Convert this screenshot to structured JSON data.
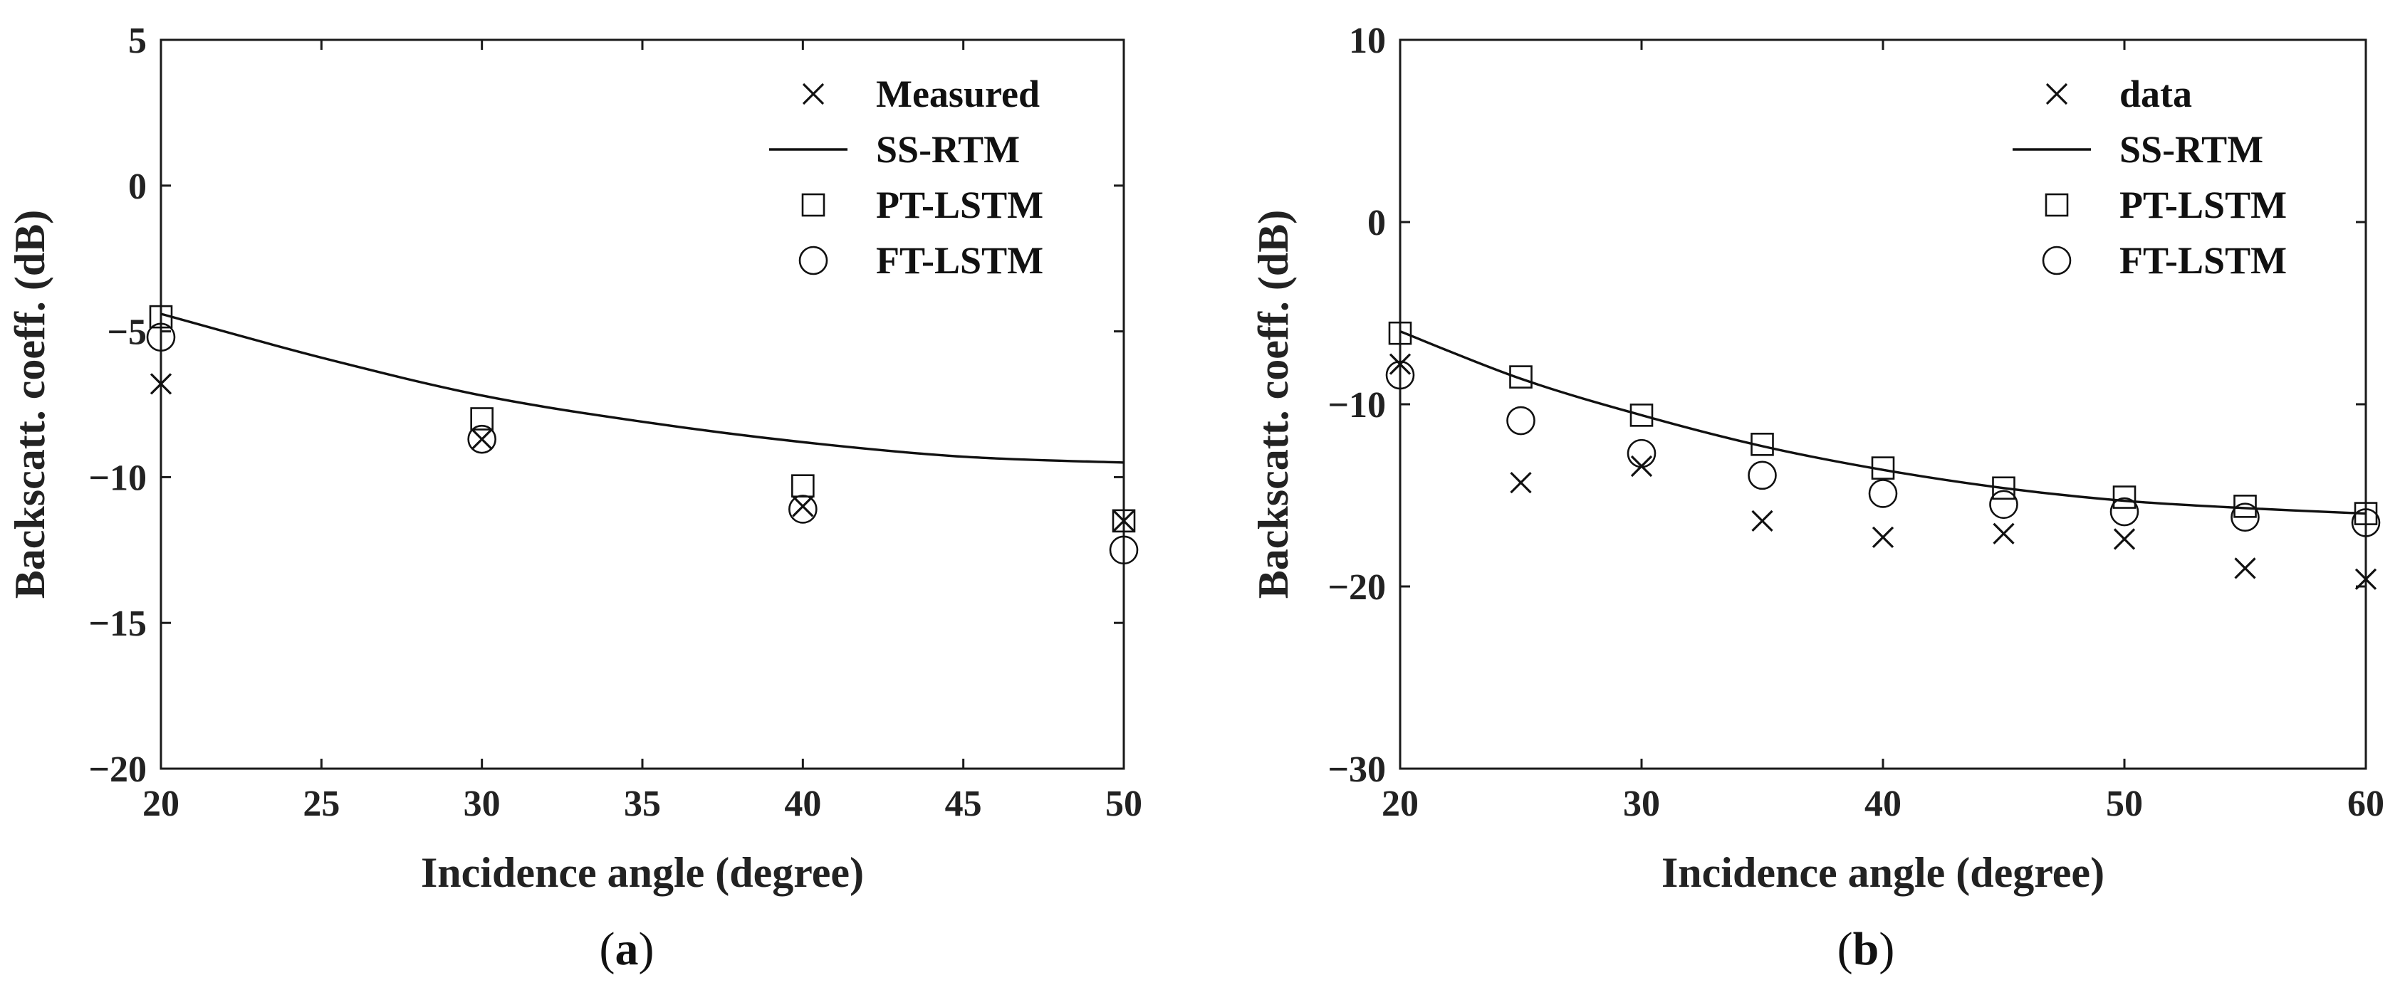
{
  "chart_data": [
    {
      "type": "line",
      "panel_label": "a",
      "xlabel": "Incidence angle (degree)",
      "ylabel": "Backscatt. coeff. (dB)",
      "xlim": [
        20,
        50
      ],
      "ylim": [
        -20,
        5
      ],
      "xticks": [
        20,
        25,
        30,
        35,
        40,
        45,
        50
      ],
      "yticks": [
        -20,
        -15,
        -10,
        -5,
        0,
        5
      ],
      "xtick_labels": [
        "20",
        "25",
        "30",
        "35",
        "40",
        "45",
        "50"
      ],
      "ytick_labels": [
        "−20",
        "−15",
        "−10",
        "−5",
        "0",
        "5"
      ],
      "legend_position": "top-right",
      "series": [
        {
          "name": "Measured",
          "marker": "x",
          "x": [
            20,
            30,
            40,
            50
          ],
          "y": [
            -6.8,
            -8.7,
            -11.0,
            -11.5
          ]
        },
        {
          "name": "SS-RTM",
          "marker": "line",
          "x": [
            20,
            25,
            30,
            35,
            40,
            45,
            50
          ],
          "y": [
            -4.4,
            -5.9,
            -7.2,
            -8.1,
            -8.8,
            -9.3,
            -9.5
          ]
        },
        {
          "name": "PT-LSTM",
          "marker": "square",
          "x": [
            20,
            30,
            40,
            50
          ],
          "y": [
            -4.5,
            -8.0,
            -10.3,
            -11.5
          ]
        },
        {
          "name": "FT-LSTM",
          "marker": "circle",
          "x": [
            20,
            30,
            40,
            50
          ],
          "y": [
            -5.2,
            -8.7,
            -11.1,
            -12.5
          ]
        }
      ]
    },
    {
      "type": "line",
      "panel_label": "b",
      "xlabel": "Incidence angle (degree)",
      "ylabel": "Backscatt. coeff. (dB)",
      "xlim": [
        20,
        60
      ],
      "ylim": [
        -30,
        10
      ],
      "xticks": [
        20,
        30,
        40,
        50,
        60
      ],
      "yticks": [
        -30,
        -20,
        -10,
        0,
        10
      ],
      "xtick_labels": [
        "20",
        "30",
        "40",
        "50",
        "60"
      ],
      "ytick_labels": [
        "−30",
        "−20",
        "−10",
        "0",
        "10"
      ],
      "legend_position": "top-right",
      "series": [
        {
          "name": "data",
          "marker": "x",
          "x": [
            20,
            25,
            30,
            35,
            40,
            45,
            50,
            55,
            60
          ],
          "y": [
            -7.8,
            -14.3,
            -13.4,
            -16.4,
            -17.3,
            -17.1,
            -17.4,
            -19.0,
            -19.6
          ]
        },
        {
          "name": "SS-RTM",
          "marker": "line",
          "x": [
            20,
            25,
            30,
            35,
            40,
            45,
            50,
            55,
            60
          ],
          "y": [
            -6.0,
            -8.6,
            -10.6,
            -12.3,
            -13.6,
            -14.6,
            -15.3,
            -15.7,
            -16.0
          ]
        },
        {
          "name": "PT-LSTM",
          "marker": "square",
          "x": [
            20,
            25,
            30,
            35,
            40,
            45,
            50,
            55,
            60
          ],
          "y": [
            -6.1,
            -8.5,
            -10.6,
            -12.2,
            -13.5,
            -14.6,
            -15.1,
            -15.6,
            -16.0
          ]
        },
        {
          "name": "FT-LSTM",
          "marker": "circle",
          "x": [
            20,
            25,
            30,
            35,
            40,
            45,
            50,
            55,
            60
          ],
          "y": [
            -8.4,
            -10.9,
            -12.7,
            -13.9,
            -14.9,
            -15.5,
            -15.9,
            -16.2,
            -16.5
          ]
        }
      ]
    }
  ]
}
